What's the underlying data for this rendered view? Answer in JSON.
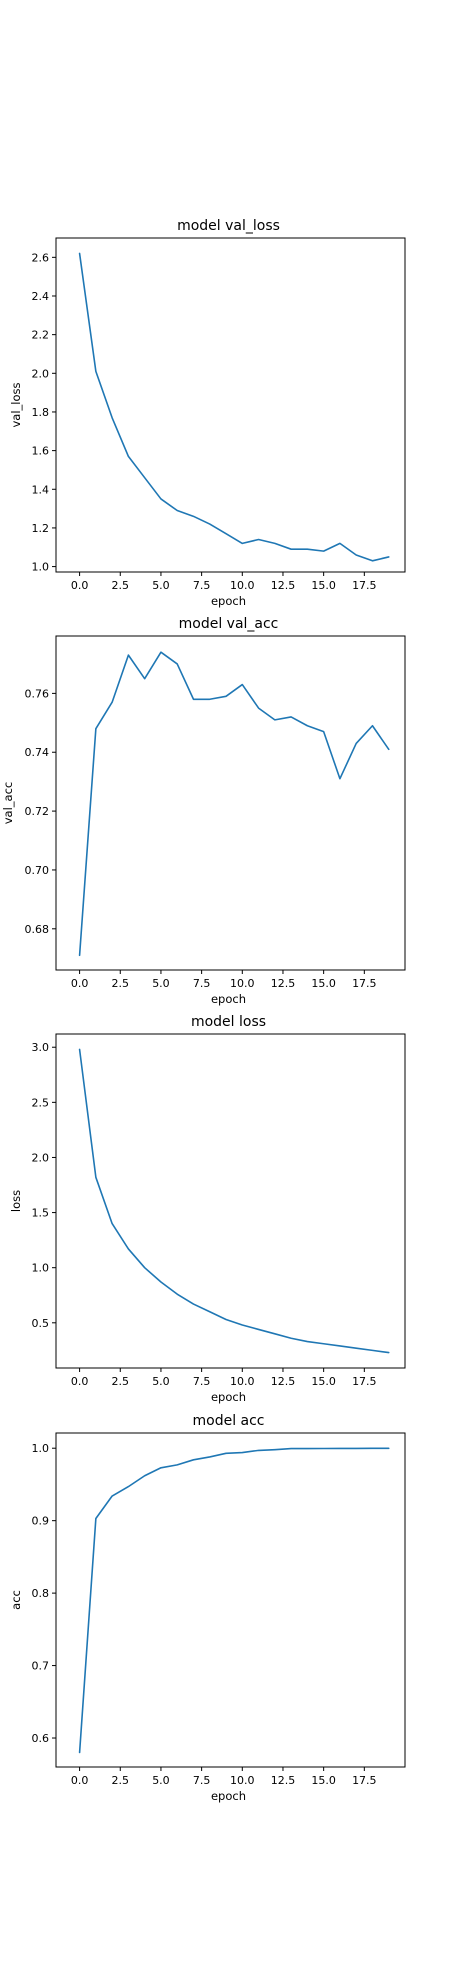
{
  "chart_data": [
    {
      "type": "line",
      "title": "model val_loss",
      "xlabel": "epoch",
      "ylabel": "val_loss",
      "x": [
        0,
        1,
        2,
        3,
        4,
        5,
        6,
        7,
        8,
        9,
        10,
        11,
        12,
        13,
        14,
        15,
        16,
        17,
        18,
        19
      ],
      "values": [
        2.62,
        2.01,
        1.77,
        1.57,
        1.46,
        1.35,
        1.29,
        1.26,
        1.22,
        1.17,
        1.12,
        1.14,
        1.12,
        1.09,
        1.09,
        1.08,
        1.12,
        1.06,
        1.03,
        1.05
      ],
      "xlim": [
        -1.45,
        20.0
      ],
      "ylim": [
        0.972,
        2.7
      ],
      "xticks": [
        0,
        2.5,
        5,
        7.5,
        10,
        12.5,
        15,
        17.5
      ],
      "xtick_labels": [
        "0.0",
        "2.5",
        "5.0",
        "7.5",
        "10.0",
        "12.5",
        "15.0",
        "17.5"
      ],
      "yticks": [
        1.0,
        1.2,
        1.4,
        1.6,
        1.8,
        2.0,
        2.2,
        2.4,
        2.6
      ],
      "ytick_labels": [
        "1.0",
        "1.2",
        "1.4",
        "1.6",
        "1.8",
        "2.0",
        "2.2",
        "2.4",
        "2.6"
      ],
      "grid": false,
      "color": "#1f77b4"
    },
    {
      "type": "line",
      "title": "model val_acc",
      "xlabel": "epoch",
      "ylabel": "val_acc",
      "x": [
        0,
        1,
        2,
        3,
        4,
        5,
        6,
        7,
        8,
        9,
        10,
        11,
        12,
        13,
        14,
        15,
        16,
        17,
        18,
        19
      ],
      "values": [
        0.671,
        0.748,
        0.757,
        0.773,
        0.765,
        0.774,
        0.77,
        0.758,
        0.758,
        0.759,
        0.763,
        0.755,
        0.751,
        0.752,
        0.749,
        0.747,
        0.731,
        0.743,
        0.749,
        0.741
      ],
      "xlim": [
        -1.45,
        20.0
      ],
      "ylim": [
        0.666,
        0.7795
      ],
      "xticks": [
        0,
        2.5,
        5,
        7.5,
        10,
        12.5,
        15,
        17.5
      ],
      "xtick_labels": [
        "0.0",
        "2.5",
        "5.0",
        "7.5",
        "10.0",
        "12.5",
        "15.0",
        "17.5"
      ],
      "yticks": [
        0.68,
        0.7,
        0.72,
        0.74,
        0.76
      ],
      "ytick_labels": [
        "0.68",
        "0.70",
        "0.72",
        "0.74",
        "0.76"
      ],
      "grid": false,
      "color": "#1f77b4"
    },
    {
      "type": "line",
      "title": "model loss",
      "xlabel": "epoch",
      "ylabel": "loss",
      "x": [
        0,
        1,
        2,
        3,
        4,
        5,
        6,
        7,
        8,
        9,
        10,
        11,
        12,
        13,
        14,
        15,
        16,
        17,
        18,
        19
      ],
      "values": [
        2.98,
        1.82,
        1.4,
        1.17,
        1.0,
        0.87,
        0.76,
        0.67,
        0.6,
        0.53,
        0.48,
        0.44,
        0.4,
        0.36,
        0.33,
        0.31,
        0.29,
        0.27,
        0.25,
        0.23
      ],
      "xlim": [
        -1.45,
        20.0
      ],
      "ylim": [
        0.09,
        3.12
      ],
      "xticks": [
        0,
        2.5,
        5,
        7.5,
        10,
        12.5,
        15,
        17.5
      ],
      "xtick_labels": [
        "0.0",
        "2.5",
        "5.0",
        "7.5",
        "10.0",
        "12.5",
        "15.0",
        "17.5"
      ],
      "yticks": [
        0.5,
        1.0,
        1.5,
        2.0,
        2.5,
        3.0
      ],
      "ytick_labels": [
        "0.5",
        "1.0",
        "1.5",
        "2.0",
        "2.5",
        "3.0"
      ],
      "grid": false,
      "color": "#1f77b4"
    },
    {
      "type": "line",
      "title": "model acc",
      "xlabel": "epoch",
      "ylabel": "acc",
      "x": [
        0,
        1,
        2,
        3,
        4,
        5,
        6,
        7,
        8,
        9,
        10,
        11,
        12,
        13,
        14,
        15,
        16,
        17,
        18,
        19
      ],
      "values": [
        0.58,
        0.903,
        0.934,
        0.947,
        0.962,
        0.973,
        0.977,
        0.984,
        0.988,
        0.993,
        0.994,
        0.997,
        0.998,
        0.9995,
        0.9995,
        0.9996,
        0.9997,
        0.9997,
        0.9998,
        0.9998
      ],
      "xlim": [
        -1.45,
        20.0
      ],
      "ylim": [
        0.56,
        1.021
      ],
      "xticks": [
        0,
        2.5,
        5,
        7.5,
        10,
        12.5,
        15,
        17.5
      ],
      "xtick_labels": [
        "0.0",
        "2.5",
        "5.0",
        "7.5",
        "10.0",
        "12.5",
        "15.0",
        "17.5"
      ],
      "yticks": [
        0.6,
        0.7,
        0.8,
        0.9,
        1.0
      ],
      "ytick_labels": [
        "0.6",
        "0.7",
        "0.8",
        "0.9",
        "1.0"
      ],
      "grid": false,
      "color": "#1f77b4"
    }
  ]
}
